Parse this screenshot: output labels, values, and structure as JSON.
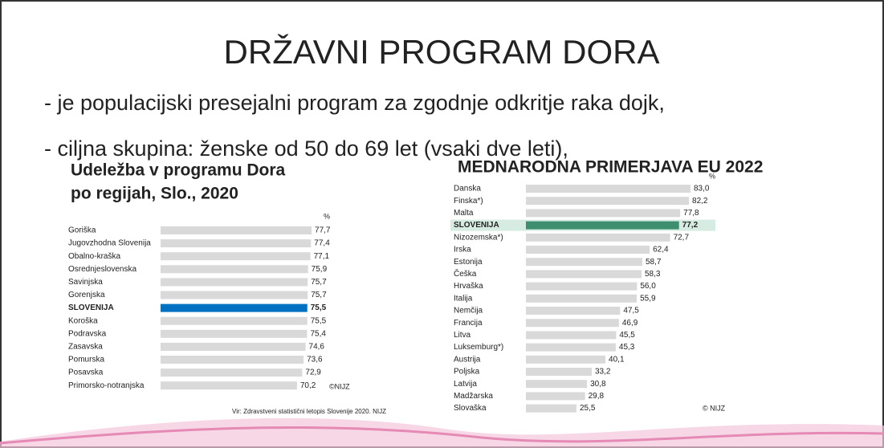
{
  "slide": {
    "title": "DRŽAVNI PROGRAM DORA",
    "bullets": [
      "- je populacijski presejalni program za zgodnje odkritje raka dojk,",
      "- ciljna skupina: ženske od 50 do 69 let (vsaki dve leti),"
    ]
  },
  "chart_data": [
    {
      "type": "bar",
      "title_lines": [
        "Udeležba v programu Dora",
        "po regijah, Slo., 2020"
      ],
      "unit": "%",
      "categories": [
        "Goriška",
        "Jugovzhodna Slovenija",
        "Obalno-kraška",
        "Osrednjeslovenska",
        "Savinjska",
        "Gorenjska",
        "SLOVENIJA",
        "Koroška",
        "Podravska",
        "Zasavska",
        "Pomurska",
        "Posavska",
        "Primorsko-notranjska"
      ],
      "values": [
        77.7,
        77.4,
        77.1,
        75.9,
        75.7,
        75.7,
        75.5,
        75.5,
        75.4,
        74.6,
        73.6,
        72.9,
        70.2
      ],
      "value_labels": [
        "77,7",
        "77,4",
        "77,1",
        "75,9",
        "75,7",
        "75,7",
        "75,5",
        "75,5",
        "75,4",
        "74,6",
        "73,6",
        "72,9",
        "70,2"
      ],
      "colors": [
        "#d9d9d9",
        "#d9d9d9",
        "#d9d9d9",
        "#d9d9d9",
        "#d9d9d9",
        "#d9d9d9",
        "#0070c0",
        "#d9d9d9",
        "#d9d9d9",
        "#d9d9d9",
        "#d9d9d9",
        "#d9d9d9",
        "#d9d9d9"
      ],
      "copyright": "©NIJZ",
      "source": "Vir: Zdravstveni statistični letopis Slovenije 2020. NIJZ"
    },
    {
      "type": "bar",
      "title": "MEDNARODNA PRIMERJAVA EU 2022",
      "unit": "%",
      "categories": [
        "Danska",
        "Finska*)",
        "Malta",
        "SLOVENIJA",
        "Nizozemska*)",
        "Irska",
        "Estonija",
        "Češka",
        "Hrvaška",
        "Italija",
        "Nemčija",
        "Francija",
        "Litva",
        "Luksemburg*)",
        "Austrija",
        "Poljska",
        "Latvija",
        "Madžarska",
        "Slovaška"
      ],
      "values": [
        83.0,
        82.2,
        77.8,
        77.2,
        72.7,
        62.4,
        58.7,
        58.3,
        56.0,
        55.9,
        47.5,
        46.9,
        45.5,
        45.3,
        40.1,
        33.2,
        30.8,
        29.8,
        25.5
      ],
      "value_labels": [
        "83,0",
        "82,2",
        "77,8",
        "77,2",
        "72,7",
        "62,4",
        "58,7",
        "58,3",
        "56,0",
        "55,9",
        "47,5",
        "46,9",
        "45,5",
        "45,3",
        "40,1",
        "33,2",
        "30,8",
        "29,8",
        "25,5"
      ],
      "colors": [
        "#d9d9d9",
        "#d9d9d9",
        "#d9d9d9",
        "#3d8f6f",
        "#d9d9d9",
        "#d9d9d9",
        "#d9d9d9",
        "#d9d9d9",
        "#d9d9d9",
        "#d9d9d9",
        "#d9d9d9",
        "#d9d9d9",
        "#d9d9d9",
        "#d9d9d9",
        "#d9d9d9",
        "#d9d9d9",
        "#d9d9d9",
        "#d9d9d9",
        "#d9d9d9"
      ],
      "copyright": "© NIJZ"
    }
  ]
}
